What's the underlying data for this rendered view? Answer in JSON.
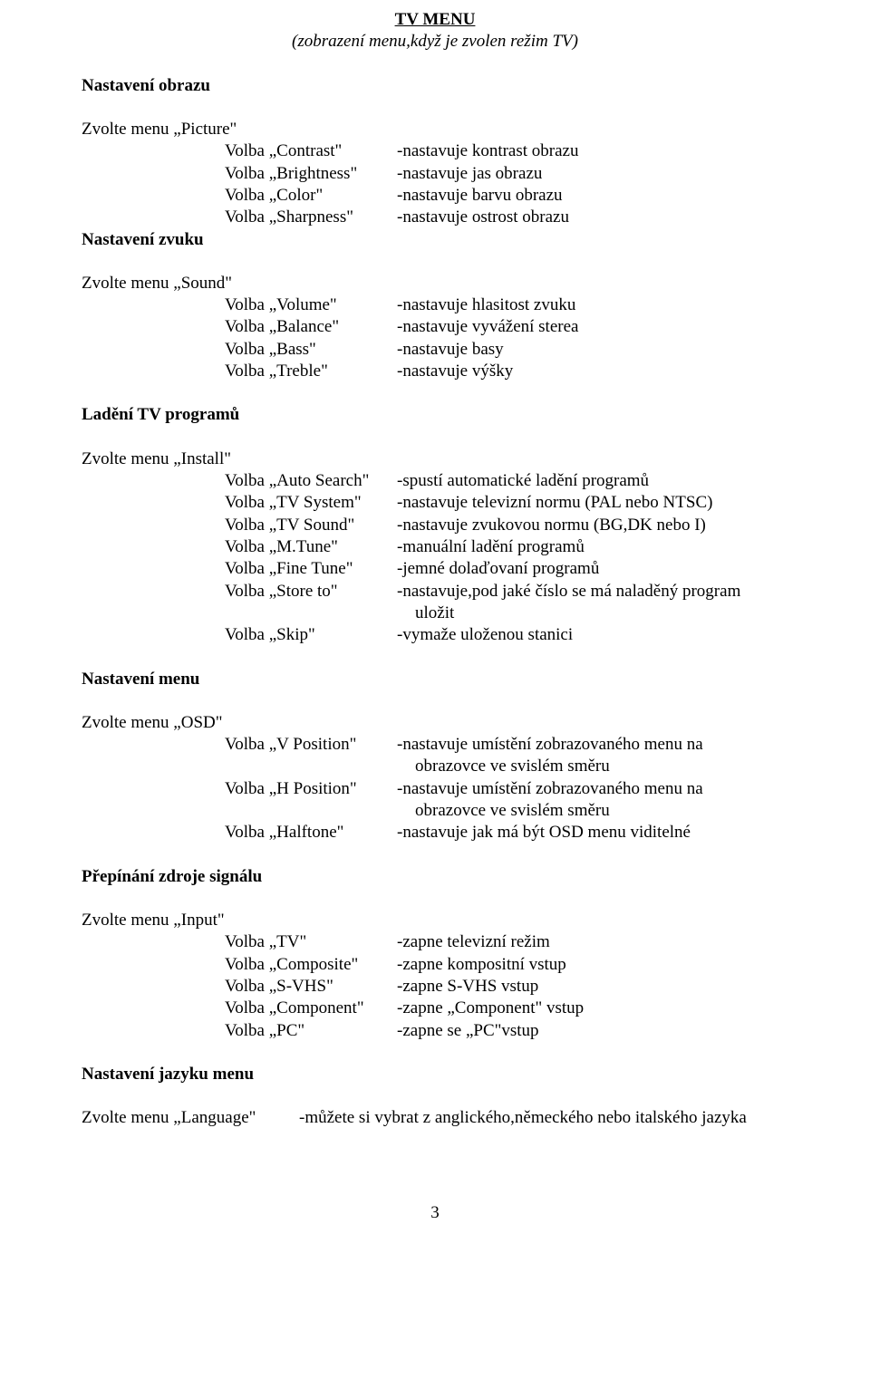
{
  "title": "TV MENU",
  "subtitle": "(zobrazení menu,když je zvolen režim TV)",
  "page_number": "3",
  "sections": {
    "picture": {
      "heading": "Nastavení obrazu",
      "menu_select": "Zvolte menu „Picture\"",
      "rows": [
        {
          "l": "Volba „Contrast\"",
          "r": "-nastavuje kontrast obrazu"
        },
        {
          "l": "Volba „Brightness\"",
          "r": "-nastavuje jas obrazu"
        },
        {
          "l": "Volba „Color\"",
          "r": "-nastavuje barvu obrazu"
        },
        {
          "l": "Volba „Sharpness\"",
          "r": "-nastavuje ostrost obrazu"
        }
      ]
    },
    "sound": {
      "heading": "Nastavení zvuku",
      "menu_select": "Zvolte menu „Sound\"",
      "rows": [
        {
          "l": "Volba „Volume\"",
          "r": "-nastavuje hlasitost zvuku"
        },
        {
          "l": "Volba „Balance\"",
          "r": "-nastavuje vyvážení sterea"
        },
        {
          "l": "Volba „Bass\"",
          "r": "-nastavuje basy"
        },
        {
          "l": "Volba „Treble\"",
          "r": "-nastavuje výšky"
        }
      ]
    },
    "install": {
      "heading": "Ladění TV programů",
      "menu_select": "Zvolte menu „Install\"",
      "rows": [
        {
          "l": "Volba „Auto Search\"",
          "r": "-spustí automatické ladění programů"
        },
        {
          "l": "Volba „TV System\"",
          "r": "-nastavuje televizní normu (PAL nebo NTSC)"
        },
        {
          "l": "Volba „TV Sound\"",
          "r": "-nastavuje zvukovou normu (BG,DK nebo I)"
        },
        {
          "l": "Volba „M.Tune\"",
          "r": "-manuální ladění programů"
        },
        {
          "l": "Volba „Fine Tune\"",
          "r": "-jemné dolaďovaní programů"
        },
        {
          "l": "Volba „Store to\"",
          "r": "-nastavuje,pod jaké číslo se má naladěný program"
        }
      ],
      "cont_line": " uložit",
      "rows2": [
        {
          "l": "Volba  „Skip\"",
          "r": "-vymaže uloženou stanici"
        }
      ]
    },
    "osd": {
      "heading": "Nastavení menu",
      "menu_select": "Zvolte menu „OSD\"",
      "rows": [
        {
          "l": "Volba „V Position\"",
          "r": "-nastavuje umístění zobrazovaného menu na"
        }
      ],
      "cont1": " obrazovce ve svislém směru",
      "rows2": [
        {
          "l": "Volba „H Position\"",
          "r": "-nastavuje umístění zobrazovaného menu na"
        }
      ],
      "cont2": " obrazovce ve svislém směru",
      "rows3": [
        {
          "l": "Volba „Halftone\"",
          "r": "-nastavuje jak má být OSD menu viditelné"
        }
      ]
    },
    "input": {
      "heading": "Přepínání zdroje signálu",
      "menu_select": "Zvolte menu „Input\"",
      "rows": [
        {
          "l": "Volba „TV\"",
          "r": "-zapne televizní režim"
        },
        {
          "l": "Volba „Composite\"",
          "r": "-zapne kompositní vstup"
        },
        {
          "l": "Volba „S-VHS\"",
          "r": "-zapne S-VHS vstup"
        },
        {
          "l": "Volba „Component\"",
          "r": "-zapne „Component\" vstup"
        },
        {
          "l": "Volba „PC\"",
          "r": "-zapne se „PC\"vstup"
        }
      ]
    },
    "language": {
      "heading": "Nastavení jazyku menu",
      "menu_select": "Zvolte menu „Language\"",
      "desc": "-můžete si vybrat z anglického,německého nebo italského jazyka"
    }
  }
}
